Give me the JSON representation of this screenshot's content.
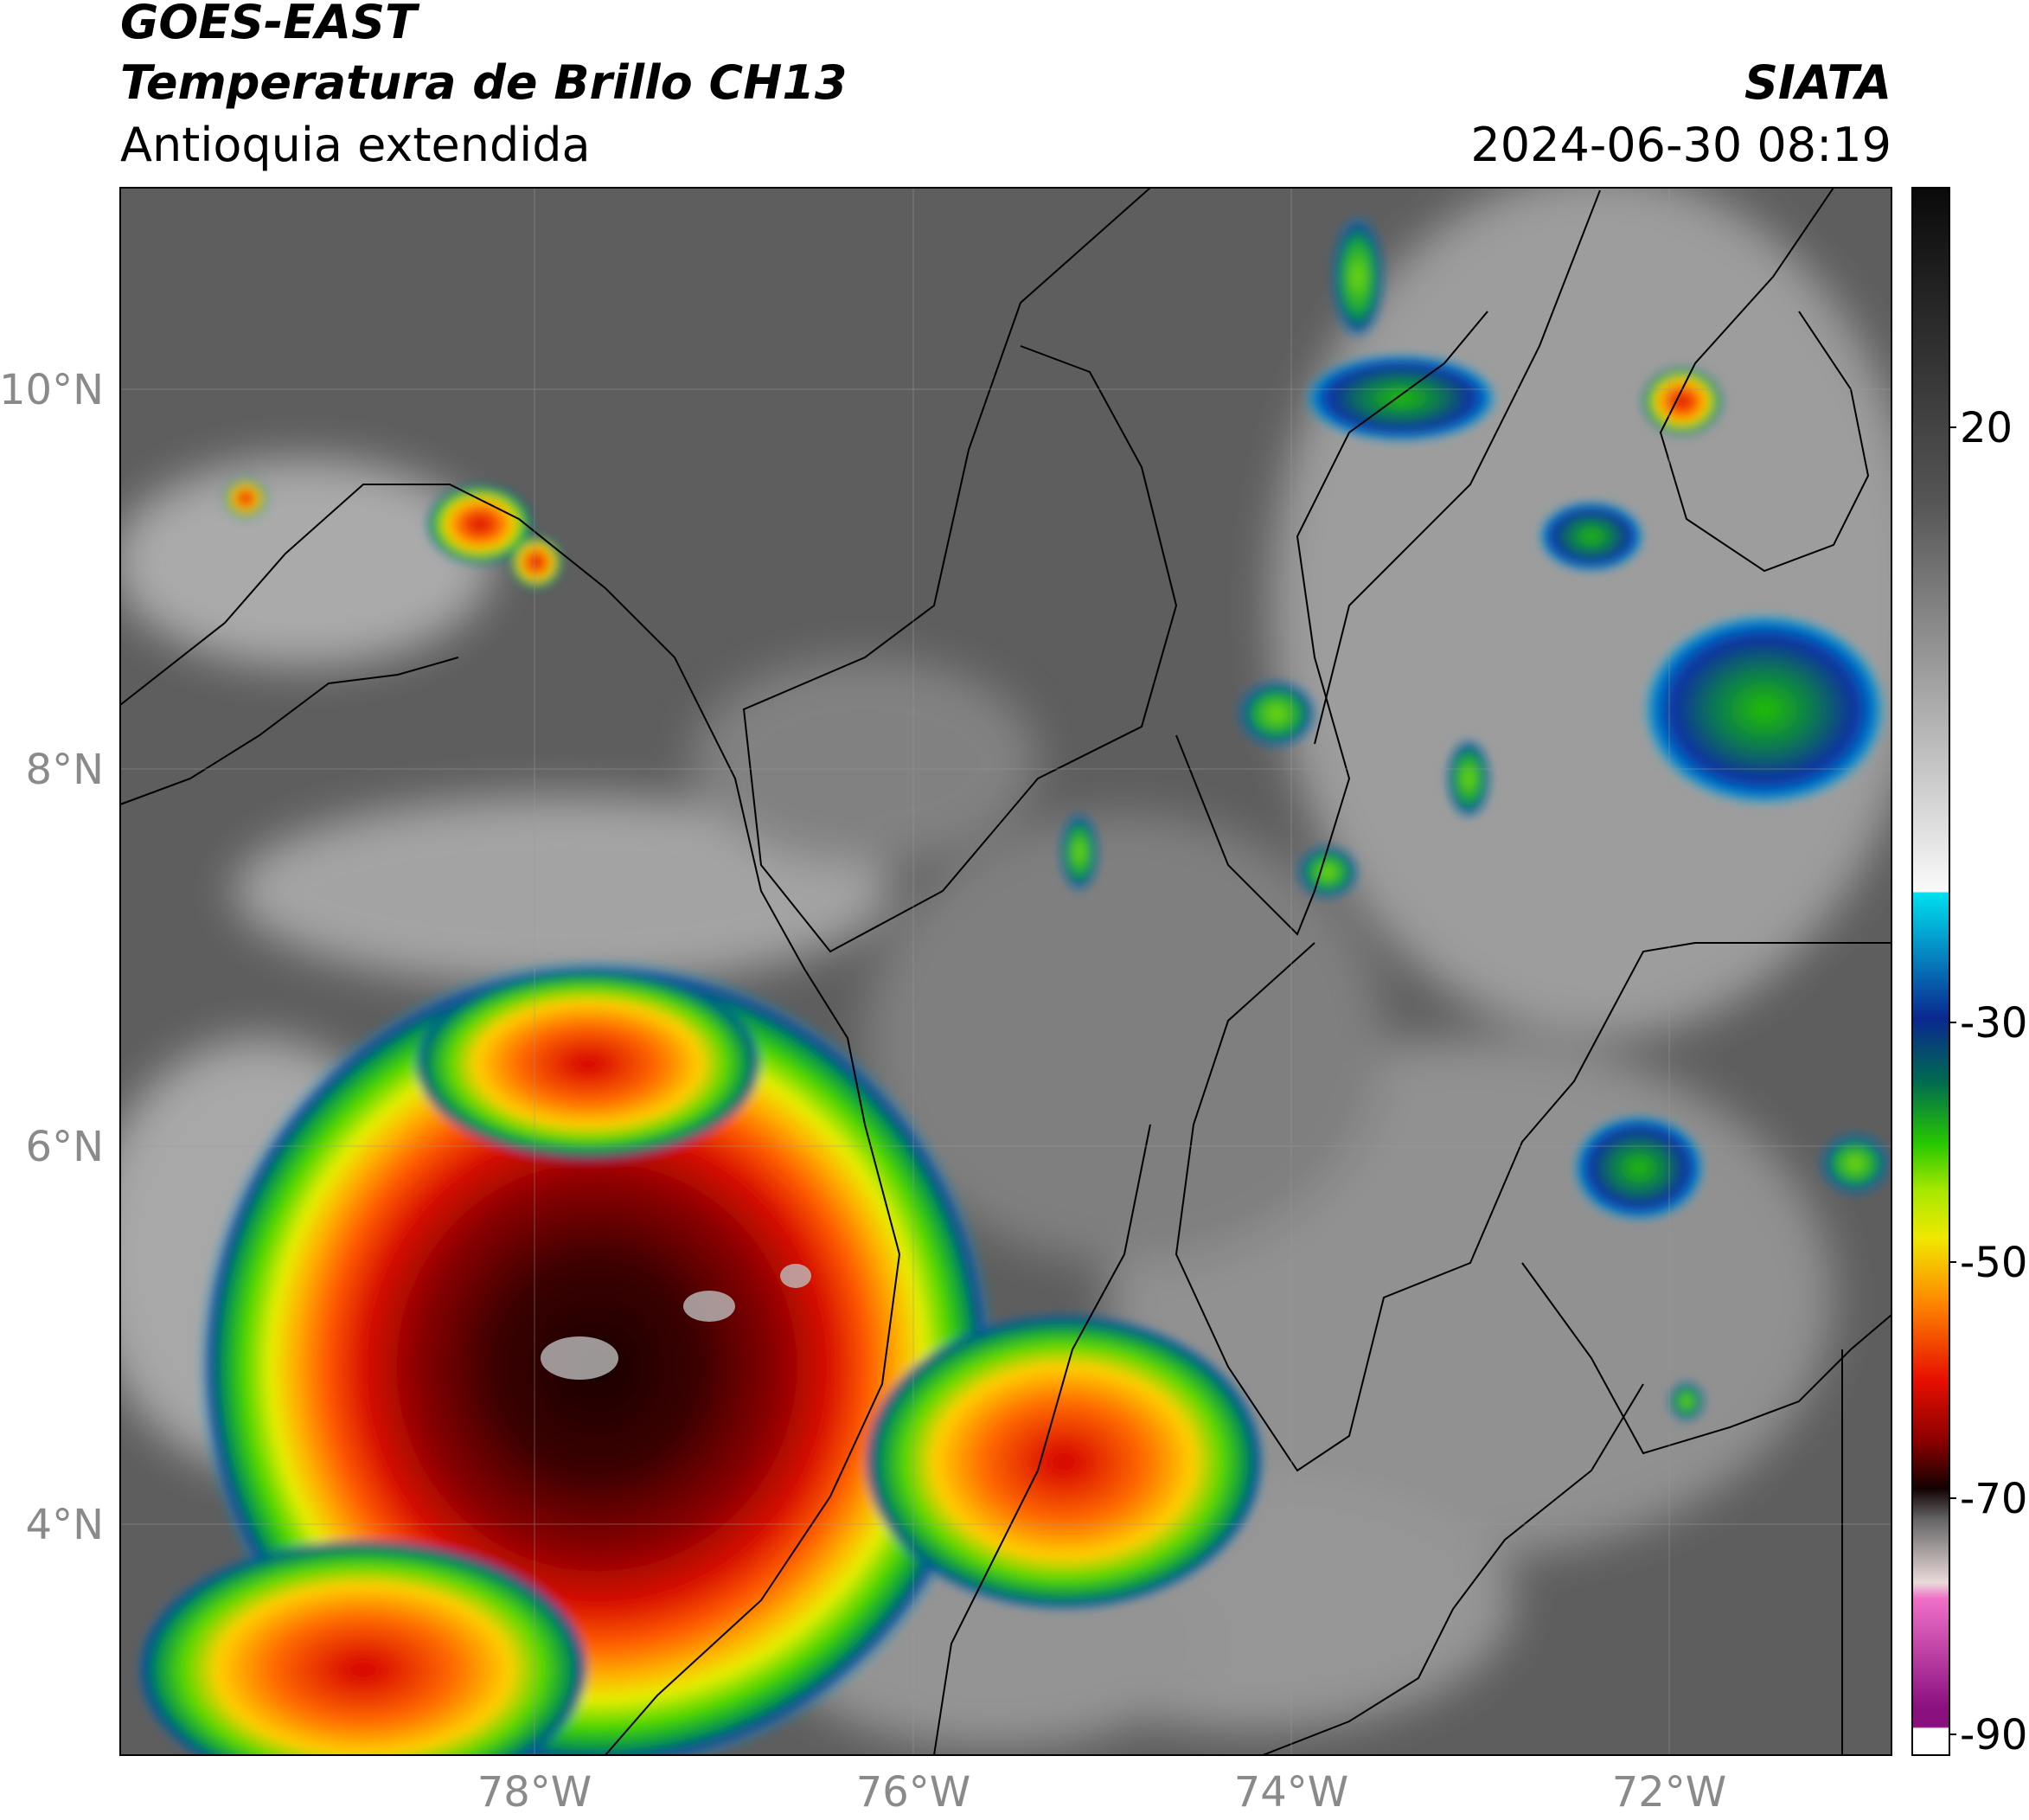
{
  "header": {
    "title": "GOES-EAST",
    "subtitle": "Temperatura de Brillo CH13",
    "region": "Antioquia extendida",
    "source": "SIATA",
    "datetime": "2024-06-30 08:19"
  },
  "map": {
    "lat_labels": [
      "10°N",
      "8°N",
      "6°N",
      "4°N"
    ],
    "lon_labels": [
      "78°W",
      "76°W",
      "74°W",
      "72°W"
    ]
  },
  "colorbar": {
    "ticks": [
      20,
      -30,
      -50,
      -70,
      -90
    ]
  }
}
